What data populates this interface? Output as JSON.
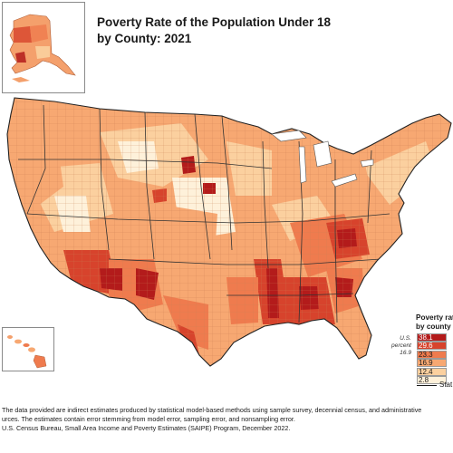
{
  "title": {
    "line1": "Poverty Rate of the Population Under 18",
    "line2": "by County: 2021"
  },
  "legend": {
    "title_line1": "Poverty rat",
    "title_line2": "by county",
    "bins": [
      {
        "value": "38.1",
        "color": "#b31b1b"
      },
      {
        "value": "29.6",
        "color": "#d7432c"
      },
      {
        "value": "23.3",
        "color": "#ef7b4e"
      },
      {
        "value": "16.9",
        "color": "#f7a872"
      },
      {
        "value": "12.4",
        "color": "#fbd09f"
      },
      {
        "value": "2.8",
        "color": "#fef1da"
      }
    ],
    "state_label": "Stat"
  },
  "us_note": {
    "line1": "U.S.",
    "line2": "percent",
    "line3": "16.9"
  },
  "footnotes": {
    "line1": "The data provided are indirect estimates produced by statistical model-based methods using sample survey, decennial census, and administrative",
    "line2": "urces. The estimates contain error stemming from model error, sampling error, and nonsampling error.",
    "line3": "U.S. Census Bureau, Small Area Income and Poverty Estimates (SAIPE) Program, December 2022."
  }
}
